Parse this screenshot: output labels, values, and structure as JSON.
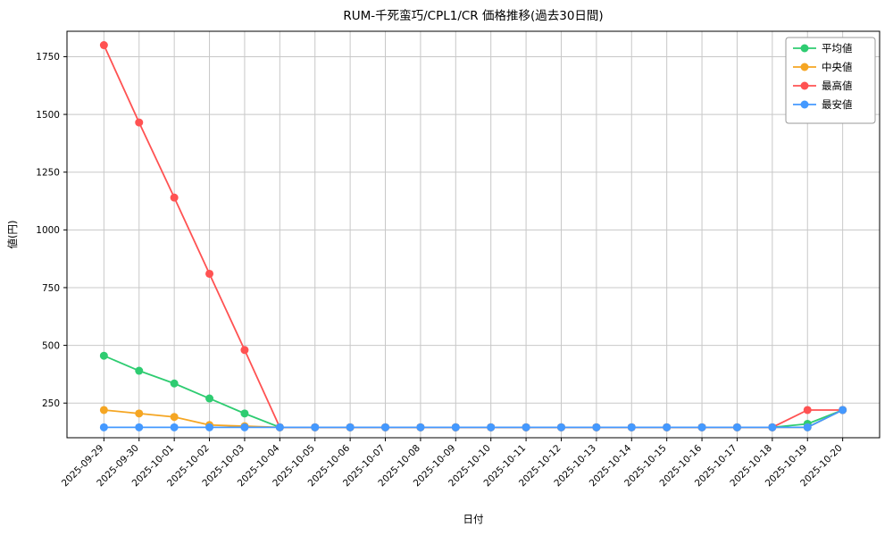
{
  "figure": {
    "background": "#ffffff",
    "plot_background": "#ffffff",
    "grid_color": "#c8c8c8",
    "axis_color": "#000000",
    "legend_border_color": "#999999"
  },
  "chart_data": {
    "type": "line",
    "title": "RUM-千死蛮巧/CPL1/CR 価格推移(過去30日間)",
    "xlabel": "日付",
    "ylabel": "値(円)",
    "grid": true,
    "legend_position": "upper right",
    "ylim": [
      100,
      1860
    ],
    "yticks": [
      250,
      500,
      750,
      1000,
      1250,
      1500,
      1750
    ],
    "x": [
      "2025-09-29",
      "2025-09-30",
      "2025-10-01",
      "2025-10-02",
      "2025-10-03",
      "2025-10-04",
      "2025-10-05",
      "2025-10-06",
      "2025-10-07",
      "2025-10-08",
      "2025-10-09",
      "2025-10-10",
      "2025-10-11",
      "2025-10-12",
      "2025-10-13",
      "2025-10-14",
      "2025-10-15",
      "2025-10-16",
      "2025-10-17",
      "2025-10-18",
      "2025-10-19",
      "2025-10-20"
    ],
    "series": [
      {
        "name": "平均値",
        "color": "#2ecc71",
        "values": [
          455,
          390,
          335,
          270,
          205,
          145,
          145,
          145,
          145,
          145,
          145,
          145,
          145,
          145,
          145,
          145,
          145,
          145,
          145,
          145,
          160,
          220
        ]
      },
      {
        "name": "中央値",
        "color": "#f5a623",
        "values": [
          220,
          205,
          190,
          155,
          150,
          145,
          145,
          145,
          145,
          145,
          145,
          145,
          145,
          145,
          145,
          145,
          145,
          145,
          145,
          145,
          145,
          220
        ]
      },
      {
        "name": "最高値",
        "color": "#ff5252",
        "values": [
          1800,
          1465,
          1140,
          810,
          480,
          145,
          145,
          145,
          145,
          145,
          145,
          145,
          145,
          145,
          145,
          145,
          145,
          145,
          145,
          145,
          220,
          220
        ]
      },
      {
        "name": "最安値",
        "color": "#4499ff",
        "values": [
          145,
          145,
          145,
          145,
          145,
          145,
          145,
          145,
          145,
          145,
          145,
          145,
          145,
          145,
          145,
          145,
          145,
          145,
          145,
          145,
          145,
          220
        ]
      }
    ]
  }
}
